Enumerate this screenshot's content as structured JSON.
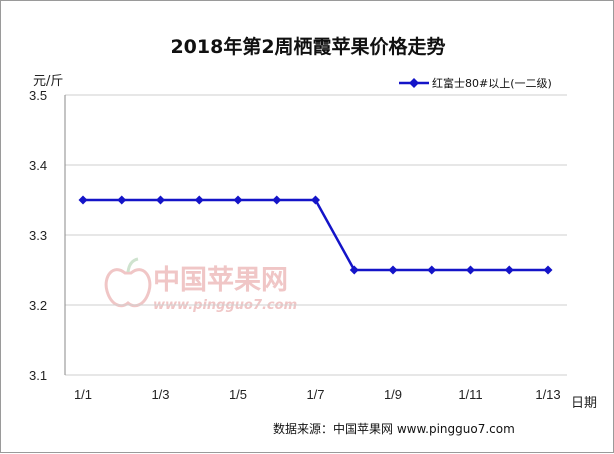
{
  "chart_data": {
    "type": "line",
    "title": "2018年第2周栖霞苹果价格走势",
    "xlabel": "日期",
    "ylabel": "元/斤",
    "ylim": [
      3.1,
      3.5
    ],
    "yticks": [
      "3.1",
      "3.2",
      "3.3",
      "3.4",
      "3.5"
    ],
    "categories": [
      "1/1",
      "1/2",
      "1/3",
      "1/4",
      "1/5",
      "1/6",
      "1/7",
      "1/8",
      "1/9",
      "1/10",
      "1/11",
      "1/12",
      "1/13"
    ],
    "tick_labels_shown": [
      "1/1",
      "1/3",
      "1/5",
      "1/7",
      "1/9",
      "1/11",
      "1/13"
    ],
    "series": [
      {
        "name": "红富士80#以上(一二级)",
        "color": "#1414c8",
        "values": [
          3.35,
          3.35,
          3.35,
          3.35,
          3.35,
          3.35,
          3.35,
          3.25,
          3.25,
          3.25,
          3.25,
          3.25,
          3.25
        ]
      }
    ],
    "legend_position": "top-right",
    "grid": "horizontal"
  },
  "source_text": "数据来源：中国苹果网 www.pingguo7.com",
  "watermark": {
    "text": "中国苹果网",
    "url": "www.pingguo7.com",
    "icon": "apple-logo-icon"
  }
}
